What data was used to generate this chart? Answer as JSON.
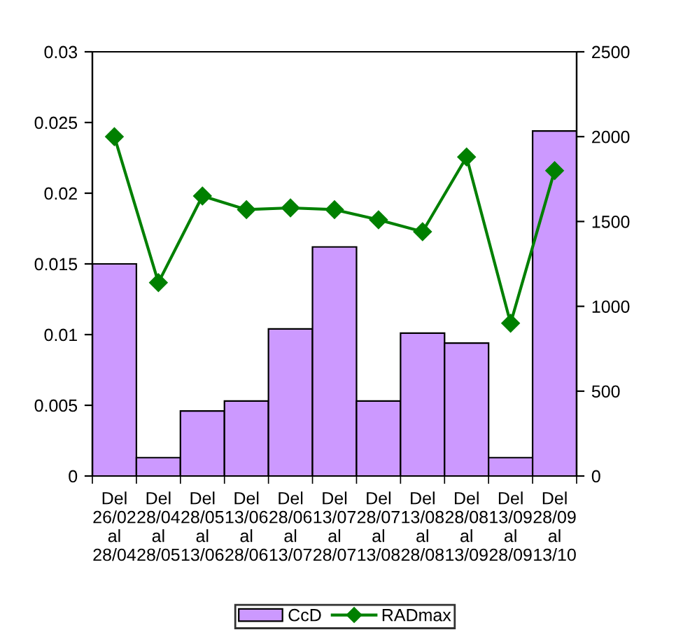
{
  "chart_data": {
    "type": "bar",
    "categories": [
      "Del\n26/02\nal\n28/04",
      "Del\n28/04\nal\n28/05",
      "Del\n28/05\nal\n13/06",
      "Del\n13/06\nal\n28/06",
      "Del\n28/06\nal\n13/07",
      "Del\n13/07\nal\n28/07",
      "Del\n28/07\nal\n13/08",
      "Del\n13/08\nal\n28/08",
      "Del\n28/08\nal\n13/09",
      "Del\n13/09\nal\n28/09",
      "Del\n28/09\nal\n13/10"
    ],
    "series": [
      {
        "name": "CcD",
        "color": "#cc99ff",
        "values": [
          0.015,
          0.0013,
          0.0046,
          0.0053,
          0.0104,
          0.0162,
          0.0053,
          0.0101,
          0.0094,
          0.0013,
          0.0244
        ]
      },
      {
        "name": "RADmax",
        "type": "line",
        "axis": "y2",
        "color": "#008000",
        "marker": "diamond",
        "values": [
          2000,
          1140,
          1650,
          1570,
          1580,
          1570,
          1510,
          1440,
          1880,
          900,
          1800
        ]
      }
    ],
    "ylim": [
      0,
      0.03
    ],
    "yticks": [
      0,
      0.005,
      0.01,
      0.015,
      0.02,
      0.025,
      0.03
    ],
    "y2lim": [
      0,
      2500
    ],
    "y2ticks": [
      0,
      500,
      1000,
      1500,
      2000,
      2500
    ],
    "grid": false,
    "legend": "bottom"
  }
}
